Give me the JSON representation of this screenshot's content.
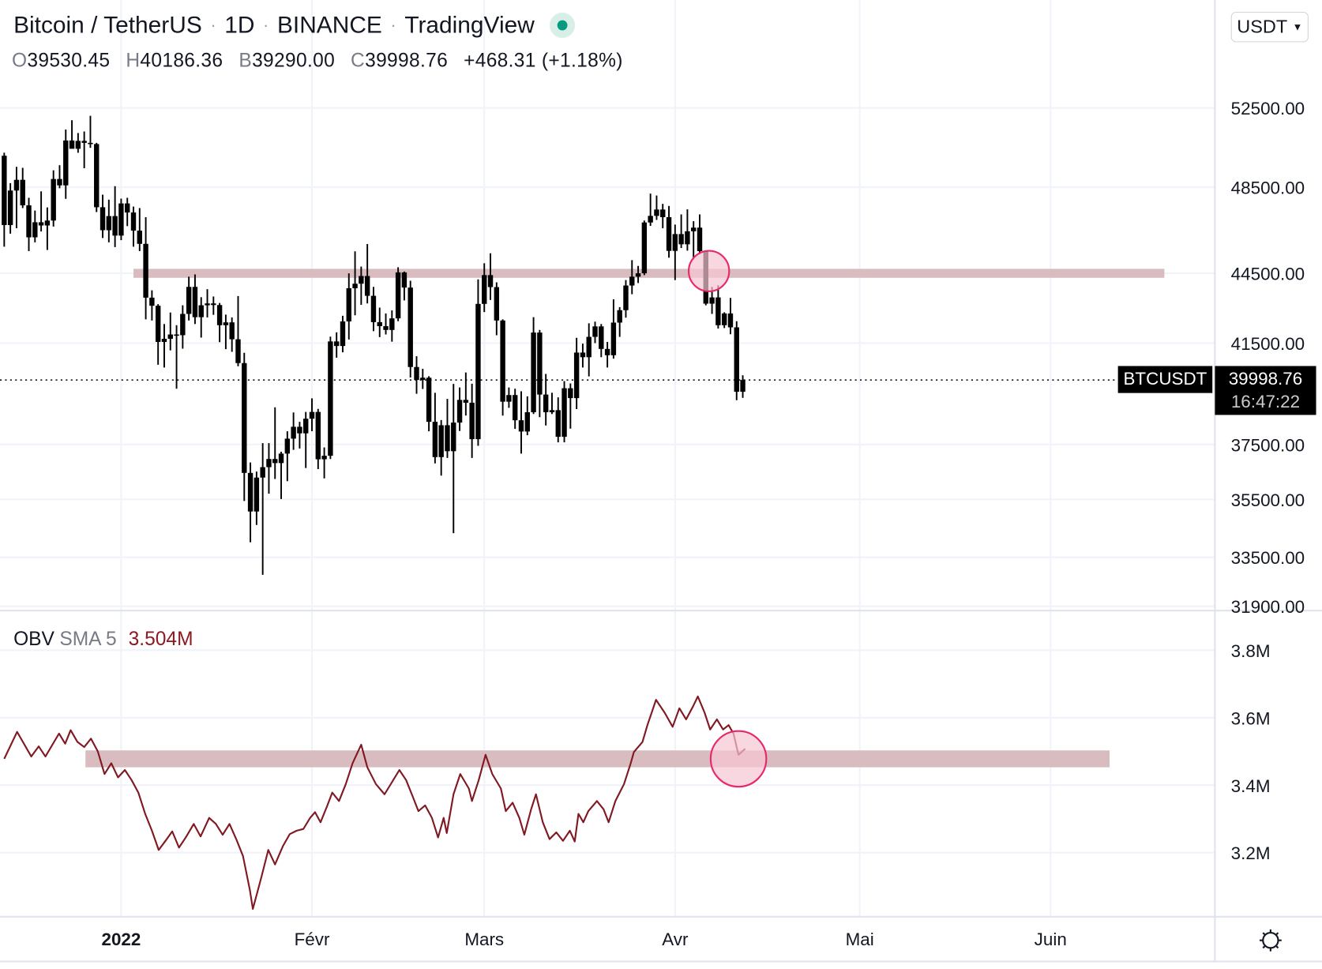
{
  "header": {
    "symbol_name": "Bitcoin / TetherUS",
    "interval": "1D",
    "exchange": "BINANCE",
    "source": "TradingView",
    "separator": "·",
    "ohlc": {
      "o_label": "O",
      "o": "39530.45",
      "h_label": "H",
      "h": "40186.36",
      "l_label": "B",
      "l": "39290.00",
      "c_label": "C",
      "c": "39998.76",
      "change": "+468.31 (+1.18%)"
    }
  },
  "currency_button": {
    "label": "USDT",
    "chevron": "⌄"
  },
  "last_price": {
    "symbol": "BTCUSDT",
    "price": "39998.76",
    "countdown": "16:47:22"
  },
  "obv_legend": {
    "name": "OBV",
    "ma": "SMA 5",
    "value": "3.504M"
  },
  "colors": {
    "candle": "#000000",
    "obv_line": "#801922",
    "zone": "#d9bcbf",
    "circle_fill": "#f7c6d3",
    "circle_stroke": "#e8286b",
    "grid": "#f0f3fa",
    "live": "#089981"
  },
  "chart_data": [
    {
      "type": "candlestick",
      "title": "Bitcoin / TetherUS 1D BINANCE",
      "y_scale": "log",
      "ylim": [
        31900,
        55500
      ],
      "y_ticks": [
        "52500.00",
        "48500.00",
        "44500.00",
        "41500.00",
        "37500.00",
        "35500.00",
        "33500.00",
        "31900.00"
      ],
      "y_tick_values": [
        52500,
        48500,
        44500,
        41500,
        37500,
        35500,
        33500,
        31900
      ],
      "x_ticks": [
        "2022",
        "Févr",
        "Mars",
        "Avr",
        "Mai",
        "Juin"
      ],
      "x_tick_days": [
        19,
        50,
        78,
        109,
        139,
        170
      ],
      "grid": true,
      "current_price": 39998.76,
      "zone": {
        "low": 44300,
        "high": 44700,
        "from_day": 21,
        "to_day": 188.5
      },
      "highlight": {
        "day": 114.5,
        "price": 44600
      },
      "candles_ohlc": [
        [
          50050,
          50200,
          45700,
          46700
        ],
        [
          46700,
          48700,
          46300,
          48340
        ],
        [
          48340,
          49500,
          46550,
          48860
        ],
        [
          48860,
          49450,
          47500,
          47630
        ],
        [
          47630,
          47990,
          45500,
          46130
        ],
        [
          46130,
          47380,
          45900,
          46830
        ],
        [
          46830,
          48300,
          46400,
          46680
        ],
        [
          46680,
          47530,
          45550,
          46910
        ],
        [
          46910,
          49330,
          46630,
          48900
        ],
        [
          48900,
          49580,
          48450,
          48590
        ],
        [
          48590,
          51380,
          47940,
          50820
        ],
        [
          50820,
          51860,
          50450,
          50400
        ],
        [
          50400,
          51200,
          50200,
          50800
        ],
        [
          50800,
          51280,
          49430,
          50700
        ],
        [
          50700,
          52090,
          50450,
          50640
        ],
        [
          50640,
          50700,
          47310,
          47540
        ],
        [
          47540,
          48140,
          46100,
          46460
        ],
        [
          46460,
          47900,
          45900,
          47120
        ],
        [
          47120,
          48550,
          45680,
          46210
        ],
        [
          46210,
          47950,
          46000,
          47720
        ],
        [
          47720,
          47990,
          46650,
          47290
        ],
        [
          47290,
          47570,
          45700,
          46440
        ],
        [
          46440,
          47500,
          45500,
          45830
        ],
        [
          45830,
          47070,
          42500,
          43430
        ],
        [
          43430,
          43750,
          42450,
          43080
        ],
        [
          43080,
          43150,
          40610,
          41550
        ],
        [
          41550,
          42300,
          40500,
          41680
        ],
        [
          41680,
          42790,
          41200,
          41860
        ],
        [
          41860,
          42250,
          39650,
          41830
        ],
        [
          41830,
          43100,
          41270,
          42730
        ],
        [
          42730,
          44350,
          42450,
          43900
        ],
        [
          43900,
          44450,
          42300,
          42590
        ],
        [
          42590,
          43450,
          41730,
          43100
        ],
        [
          43100,
          43800,
          42580,
          43180
        ],
        [
          43180,
          43480,
          42690,
          43110
        ],
        [
          43110,
          43200,
          41540,
          42250
        ],
        [
          42250,
          42700,
          41250,
          42370
        ],
        [
          42370,
          42580,
          41140,
          41660
        ],
        [
          41660,
          43500,
          40550,
          40680
        ],
        [
          40680,
          41100,
          35440,
          36450
        ],
        [
          36450,
          36830,
          34010,
          35070
        ],
        [
          35070,
          36500,
          34600,
          36280
        ],
        [
          36280,
          37550,
          32920,
          36660
        ],
        [
          36660,
          37550,
          35700,
          36960
        ],
        [
          36960,
          38920,
          36230,
          36810
        ],
        [
          36810,
          37230,
          35510,
          37160
        ],
        [
          37160,
          38000,
          36150,
          37720
        ],
        [
          37720,
          38720,
          37300,
          38170
        ],
        [
          38170,
          38360,
          37350,
          37920
        ],
        [
          37920,
          38740,
          36630,
          38480
        ],
        [
          38480,
          39270,
          38000,
          38740
        ],
        [
          38740,
          38860,
          36590,
          36950
        ],
        [
          36950,
          37390,
          36250,
          37080
        ],
        [
          37080,
          41770,
          36960,
          41570
        ],
        [
          41570,
          41950,
          40900,
          41380
        ],
        [
          41380,
          42650,
          41120,
          42410
        ],
        [
          42410,
          44500,
          41650,
          43840
        ],
        [
          43840,
          45490,
          42670,
          44040
        ],
        [
          44040,
          44800,
          43120,
          44380
        ],
        [
          44380,
          45820,
          43180,
          43510
        ],
        [
          43510,
          43900,
          42000,
          42380
        ],
        [
          42380,
          43000,
          41750,
          42210
        ],
        [
          42210,
          42750,
          41860,
          42050
        ],
        [
          42050,
          42880,
          41560,
          42540
        ],
        [
          42540,
          44770,
          42420,
          44540
        ],
        [
          44540,
          44580,
          43310,
          43870
        ],
        [
          43870,
          44170,
          40100,
          40520
        ],
        [
          40520,
          40960,
          39450,
          40000
        ],
        [
          40000,
          40450,
          39640,
          40090
        ],
        [
          40090,
          40150,
          38000,
          38360
        ],
        [
          38360,
          39490,
          36800,
          37030
        ],
        [
          37030,
          38430,
          36350,
          38230
        ],
        [
          38230,
          39250,
          37000,
          37250
        ],
        [
          37250,
          39840,
          34320,
          38330
        ],
        [
          38330,
          39700,
          38010,
          39210
        ],
        [
          39210,
          40300,
          38600,
          39100
        ],
        [
          39100,
          39850,
          37000,
          37700
        ],
        [
          37700,
          44230,
          37450,
          43160
        ],
        [
          43160,
          44950,
          42810,
          44420
        ],
        [
          44420,
          45400,
          43330,
          43890
        ],
        [
          43890,
          44100,
          41830,
          42450
        ],
        [
          42450,
          42500,
          38600,
          39140
        ],
        [
          39140,
          39700,
          38900,
          39400
        ],
        [
          39400,
          39650,
          38090,
          38420
        ],
        [
          38420,
          39550,
          37160,
          37990
        ],
        [
          37990,
          39350,
          37850,
          38730
        ],
        [
          38730,
          42590,
          38660,
          41940
        ],
        [
          41940,
          42050,
          38540,
          39420
        ],
        [
          39420,
          40240,
          38220,
          38730
        ],
        [
          38730,
          39490,
          38660,
          38810
        ],
        [
          38810,
          39310,
          37580,
          37790
        ],
        [
          37790,
          39950,
          37580,
          39670
        ],
        [
          39670,
          39860,
          38100,
          39280
        ],
        [
          39280,
          41720,
          38850,
          41110
        ],
        [
          41110,
          41480,
          40500,
          40920
        ],
        [
          40920,
          42330,
          40140,
          41760
        ],
        [
          41760,
          42400,
          41500,
          42200
        ],
        [
          42200,
          42300,
          40920,
          41260
        ],
        [
          41260,
          41550,
          40500,
          41000
        ],
        [
          41000,
          43360,
          40860,
          42360
        ],
        [
          42360,
          43020,
          41760,
          42890
        ],
        [
          42890,
          44200,
          42570,
          43960
        ],
        [
          43960,
          45090,
          43580,
          44350
        ],
        [
          44350,
          44830,
          44070,
          44500
        ],
        [
          44500,
          46910,
          44420,
          46820
        ],
        [
          46820,
          48190,
          46660,
          47130
        ],
        [
          47130,
          48100,
          46940,
          47430
        ],
        [
          47430,
          47700,
          46550,
          47070
        ],
        [
          47070,
          47600,
          45200,
          45510
        ],
        [
          45510,
          46720,
          44200,
          46280
        ],
        [
          46280,
          47200,
          45640,
          45810
        ],
        [
          45810,
          47440,
          45520,
          46410
        ],
        [
          46410,
          46880,
          45120,
          46580
        ],
        [
          46580,
          47200,
          45360,
          45500
        ],
        [
          45500,
          45510,
          43100,
          43170
        ],
        [
          43170,
          43900,
          42730,
          43440
        ],
        [
          43440,
          43970,
          42110,
          42250
        ],
        [
          42250,
          42800,
          42130,
          42750
        ],
        [
          42750,
          43420,
          41870,
          42160
        ],
        [
          42160,
          42420,
          39200,
          39530
        ],
        [
          39530.45,
          40186.36,
          39290,
          39998.76
        ]
      ]
    },
    {
      "type": "line",
      "title": "OBV SMA 5",
      "ylim": [
        3.0,
        3.9
      ],
      "y_ticks": [
        "3.8M",
        "3.6M",
        "3.4M",
        "3.2M"
      ],
      "y_tick_values": [
        3.8,
        3.6,
        3.4,
        3.2
      ],
      "last_value": "3.504M",
      "zone": {
        "low": 3.453,
        "high": 3.503,
        "from_day": 13.2,
        "to_day": 179.6
      },
      "highlight": {
        "day": 119.3,
        "value": 3.478
      },
      "points_day_value": [
        [
          0,
          3.478
        ],
        [
          2.1,
          3.558
        ],
        [
          4.4,
          3.485
        ],
        [
          5.6,
          3.515
        ],
        [
          6.7,
          3.485
        ],
        [
          8.9,
          3.553
        ],
        [
          9.9,
          3.523
        ],
        [
          10.8,
          3.563
        ],
        [
          11.9,
          3.528
        ],
        [
          13,
          3.513
        ],
        [
          14.1,
          3.538
        ],
        [
          15.2,
          3.5
        ],
        [
          16.3,
          3.433
        ],
        [
          17.4,
          3.465
        ],
        [
          18.5,
          3.423
        ],
        [
          19.6,
          3.445
        ],
        [
          20.7,
          3.415
        ],
        [
          21.8,
          3.378
        ],
        [
          22.9,
          3.315
        ],
        [
          24,
          3.265
        ],
        [
          25.1,
          3.208
        ],
        [
          26.2,
          3.235
        ],
        [
          27.3,
          3.263
        ],
        [
          28.4,
          3.215
        ],
        [
          29.5,
          3.245
        ],
        [
          30.8,
          3.285
        ],
        [
          31.9,
          3.248
        ],
        [
          33.3,
          3.303
        ],
        [
          34.4,
          3.285
        ],
        [
          35.5,
          3.253
        ],
        [
          36.6,
          3.285
        ],
        [
          37.7,
          3.24
        ],
        [
          38.8,
          3.19
        ],
        [
          39.9,
          3.09
        ],
        [
          40.4,
          3.033
        ],
        [
          41.8,
          3.128
        ],
        [
          42.9,
          3.208
        ],
        [
          44,
          3.165
        ],
        [
          45.3,
          3.22
        ],
        [
          46.4,
          3.255
        ],
        [
          47.5,
          3.265
        ],
        [
          48.6,
          3.27
        ],
        [
          49.7,
          3.303
        ],
        [
          50.5,
          3.32
        ],
        [
          51.4,
          3.29
        ],
        [
          52.5,
          3.34
        ],
        [
          53.3,
          3.378
        ],
        [
          54.4,
          3.353
        ],
        [
          55.5,
          3.403
        ],
        [
          56.6,
          3.465
        ],
        [
          58,
          3.52
        ],
        [
          59,
          3.453
        ],
        [
          60.4,
          3.403
        ],
        [
          61.8,
          3.373
        ],
        [
          63.2,
          3.415
        ],
        [
          64.2,
          3.445
        ],
        [
          65.3,
          3.415
        ],
        [
          66.4,
          3.365
        ],
        [
          67.3,
          3.323
        ],
        [
          68.4,
          3.34
        ],
        [
          69.5,
          3.303
        ],
        [
          70.5,
          3.245
        ],
        [
          71.4,
          3.303
        ],
        [
          71.9,
          3.258
        ],
        [
          73,
          3.373
        ],
        [
          74.1,
          3.433
        ],
        [
          75.5,
          3.39
        ],
        [
          76,
          3.353
        ],
        [
          77.1,
          3.415
        ],
        [
          78.2,
          3.49
        ],
        [
          79.3,
          3.433
        ],
        [
          80.7,
          3.39
        ],
        [
          81.5,
          3.323
        ],
        [
          82.6,
          3.348
        ],
        [
          83.7,
          3.303
        ],
        [
          84.5,
          3.253
        ],
        [
          85.6,
          3.328
        ],
        [
          86.4,
          3.373
        ],
        [
          87.5,
          3.29
        ],
        [
          88.6,
          3.24
        ],
        [
          89.7,
          3.26
        ],
        [
          90.8,
          3.235
        ],
        [
          91.9,
          3.265
        ],
        [
          92.7,
          3.233
        ],
        [
          93.3,
          3.315
        ],
        [
          94.1,
          3.29
        ],
        [
          94.9,
          3.323
        ],
        [
          96.3,
          3.353
        ],
        [
          97.4,
          3.328
        ],
        [
          98.2,
          3.29
        ],
        [
          99.3,
          3.353
        ],
        [
          100.7,
          3.403
        ],
        [
          101.8,
          3.465
        ],
        [
          102.3,
          3.498
        ],
        [
          103.7,
          3.528
        ],
        [
          104.5,
          3.578
        ],
        [
          105.9,
          3.653
        ],
        [
          107.3,
          3.615
        ],
        [
          108.6,
          3.573
        ],
        [
          109.7,
          3.628
        ],
        [
          110.8,
          3.595
        ],
        [
          111.9,
          3.633
        ],
        [
          112.7,
          3.663
        ],
        [
          113.8,
          3.615
        ],
        [
          114.7,
          3.565
        ],
        [
          115.8,
          3.595
        ],
        [
          116.8,
          3.565
        ],
        [
          117.7,
          3.578
        ],
        [
          118.5,
          3.553
        ],
        [
          119.3,
          3.49
        ],
        [
          120.4,
          3.508
        ]
      ]
    }
  ]
}
